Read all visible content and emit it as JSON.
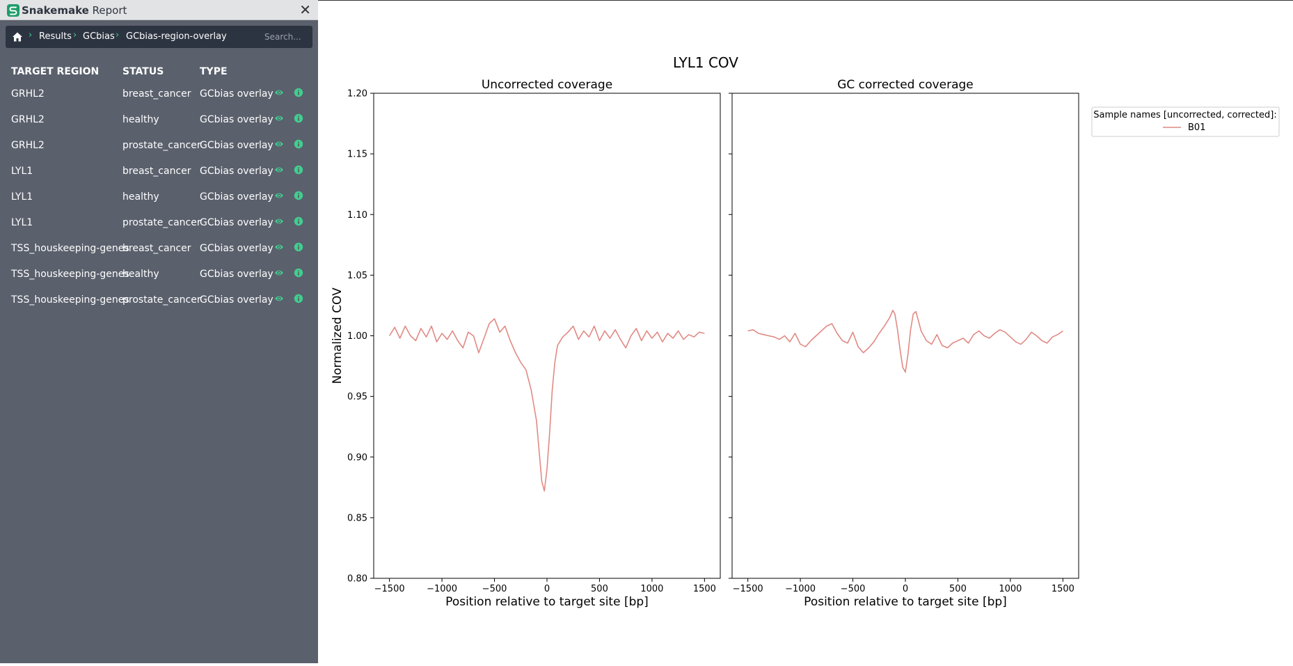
{
  "app": {
    "brand": "Snakemake",
    "subtitle": "Report"
  },
  "breadcrumb": {
    "items": [
      "Results",
      "GCbias",
      "GCbias-region-overlay"
    ],
    "search_placeholder": "Search..."
  },
  "table": {
    "headers": [
      "TARGET REGION",
      "STATUS",
      "TYPE"
    ],
    "rows": [
      {
        "region": "GRHL2",
        "status": "breast_cancer",
        "type": "GCbias overlay"
      },
      {
        "region": "GRHL2",
        "status": "healthy",
        "type": "GCbias overlay"
      },
      {
        "region": "GRHL2",
        "status": "prostate_cancer",
        "type": "GCbias overlay"
      },
      {
        "region": "LYL1",
        "status": "breast_cancer",
        "type": "GCbias overlay"
      },
      {
        "region": "LYL1",
        "status": "healthy",
        "type": "GCbias overlay"
      },
      {
        "region": "LYL1",
        "status": "prostate_cancer",
        "type": "GCbias overlay"
      },
      {
        "region": "TSS_houskeeping-genes",
        "status": "breast_cancer",
        "type": "GCbias overlay"
      },
      {
        "region": "TSS_houskeeping-genes",
        "status": "healthy",
        "type": "GCbias overlay"
      },
      {
        "region": "TSS_houskeeping-genes",
        "status": "prostate_cancer",
        "type": "GCbias overlay"
      }
    ],
    "row_icons": [
      "eye-icon",
      "info-icon"
    ]
  },
  "colors": {
    "accent": "#3fcf8e",
    "sidebar_bg": "#5a606c",
    "crumb_bg": "#2d3441",
    "series": "#e08a84"
  },
  "chart_data": {
    "type": "line",
    "title": "LYL1 COV",
    "ylabel": "Normalized COV",
    "ylim": [
      0.8,
      1.2
    ],
    "yticks": [
      "0.80",
      "0.85",
      "0.90",
      "0.95",
      "1.00",
      "1.05",
      "1.10",
      "1.15",
      "1.20"
    ],
    "xticks": [
      "−1500",
      "−1000",
      "−500",
      "0",
      "500",
      "1000",
      "1500"
    ],
    "legend": {
      "title": "Sample names [uncorrected, corrected]:",
      "entries": [
        "B01"
      ],
      "placement": "outside-right"
    },
    "panels": [
      {
        "title": "Uncorrected coverage",
        "xlabel": "Position relative to target site [bp]",
        "xlim": [
          -1650,
          1650
        ],
        "series": [
          {
            "name": "B01",
            "x": [
              -1500,
              -1450,
              -1400,
              -1350,
              -1300,
              -1250,
              -1200,
              -1150,
              -1100,
              -1050,
              -1000,
              -950,
              -900,
              -850,
              -800,
              -750,
              -700,
              -650,
              -600,
              -550,
              -500,
              -450,
              -400,
              -350,
              -300,
              -250,
              -200,
              -150,
              -100,
              -75,
              -50,
              -25,
              0,
              25,
              50,
              75,
              100,
              150,
              200,
              250,
              300,
              350,
              400,
              450,
              500,
              550,
              600,
              650,
              700,
              750,
              800,
              850,
              900,
              950,
              1000,
              1050,
              1100,
              1150,
              1200,
              1250,
              1300,
              1350,
              1400,
              1450,
              1500
            ],
            "y": [
              1.0,
              1.007,
              0.998,
              1.008,
              1.0,
              0.996,
              1.006,
              0.999,
              1.008,
              0.995,
              1.002,
              0.997,
              1.004,
              0.996,
              0.99,
              1.003,
              1.0,
              0.986,
              0.998,
              1.01,
              1.014,
              1.003,
              1.008,
              0.996,
              0.986,
              0.978,
              0.972,
              0.955,
              0.93,
              0.905,
              0.88,
              0.872,
              0.89,
              0.92,
              0.955,
              0.978,
              0.992,
              0.999,
              1.003,
              1.008,
              0.997,
              1.004,
              0.999,
              1.008,
              0.996,
              1.004,
              0.998,
              1.005,
              0.997,
              0.99,
              1.0,
              1.006,
              0.996,
              1.004,
              0.998,
              1.003,
              0.995,
              1.002,
              0.998,
              1.004,
              0.997,
              1.001,
              0.999,
              1.003,
              1.002
            ]
          }
        ]
      },
      {
        "title": "GC corrected coverage",
        "xlabel": "Position relative to target site [bp]",
        "xlim": [
          -1650,
          1650
        ],
        "series": [
          {
            "name": "B01",
            "x": [
              -1500,
              -1450,
              -1400,
              -1350,
              -1300,
              -1250,
              -1200,
              -1150,
              -1100,
              -1050,
              -1000,
              -950,
              -900,
              -850,
              -800,
              -750,
              -700,
              -650,
              -600,
              -550,
              -500,
              -450,
              -400,
              -350,
              -300,
              -250,
              -200,
              -150,
              -120,
              -100,
              -75,
              -50,
              -25,
              0,
              25,
              50,
              75,
              100,
              125,
              150,
              200,
              250,
              300,
              350,
              400,
              450,
              500,
              550,
              600,
              650,
              700,
              750,
              800,
              850,
              900,
              950,
              1000,
              1050,
              1100,
              1150,
              1200,
              1250,
              1300,
              1350,
              1400,
              1450,
              1500
            ],
            "y": [
              1.004,
              1.005,
              1.002,
              1.001,
              1.0,
              0.999,
              0.997,
              1.0,
              0.995,
              1.002,
              0.993,
              0.991,
              0.996,
              1.0,
              1.004,
              1.008,
              1.01,
              1.002,
              0.996,
              0.994,
              1.003,
              0.991,
              0.986,
              0.99,
              0.995,
              1.002,
              1.008,
              1.015,
              1.021,
              1.018,
              1.005,
              0.988,
              0.974,
              0.97,
              0.985,
              1.005,
              1.018,
              1.02,
              1.012,
              1.004,
              0.996,
              0.993,
              1.001,
              0.992,
              0.99,
              0.994,
              0.996,
              0.998,
              0.994,
              1.001,
              1.004,
              1.0,
              0.998,
              1.002,
              1.005,
              1.003,
              0.999,
              0.995,
              0.993,
              0.997,
              1.003,
              1.0,
              0.996,
              0.994,
              0.999,
              1.001,
              1.004
            ]
          }
        ]
      }
    ]
  }
}
